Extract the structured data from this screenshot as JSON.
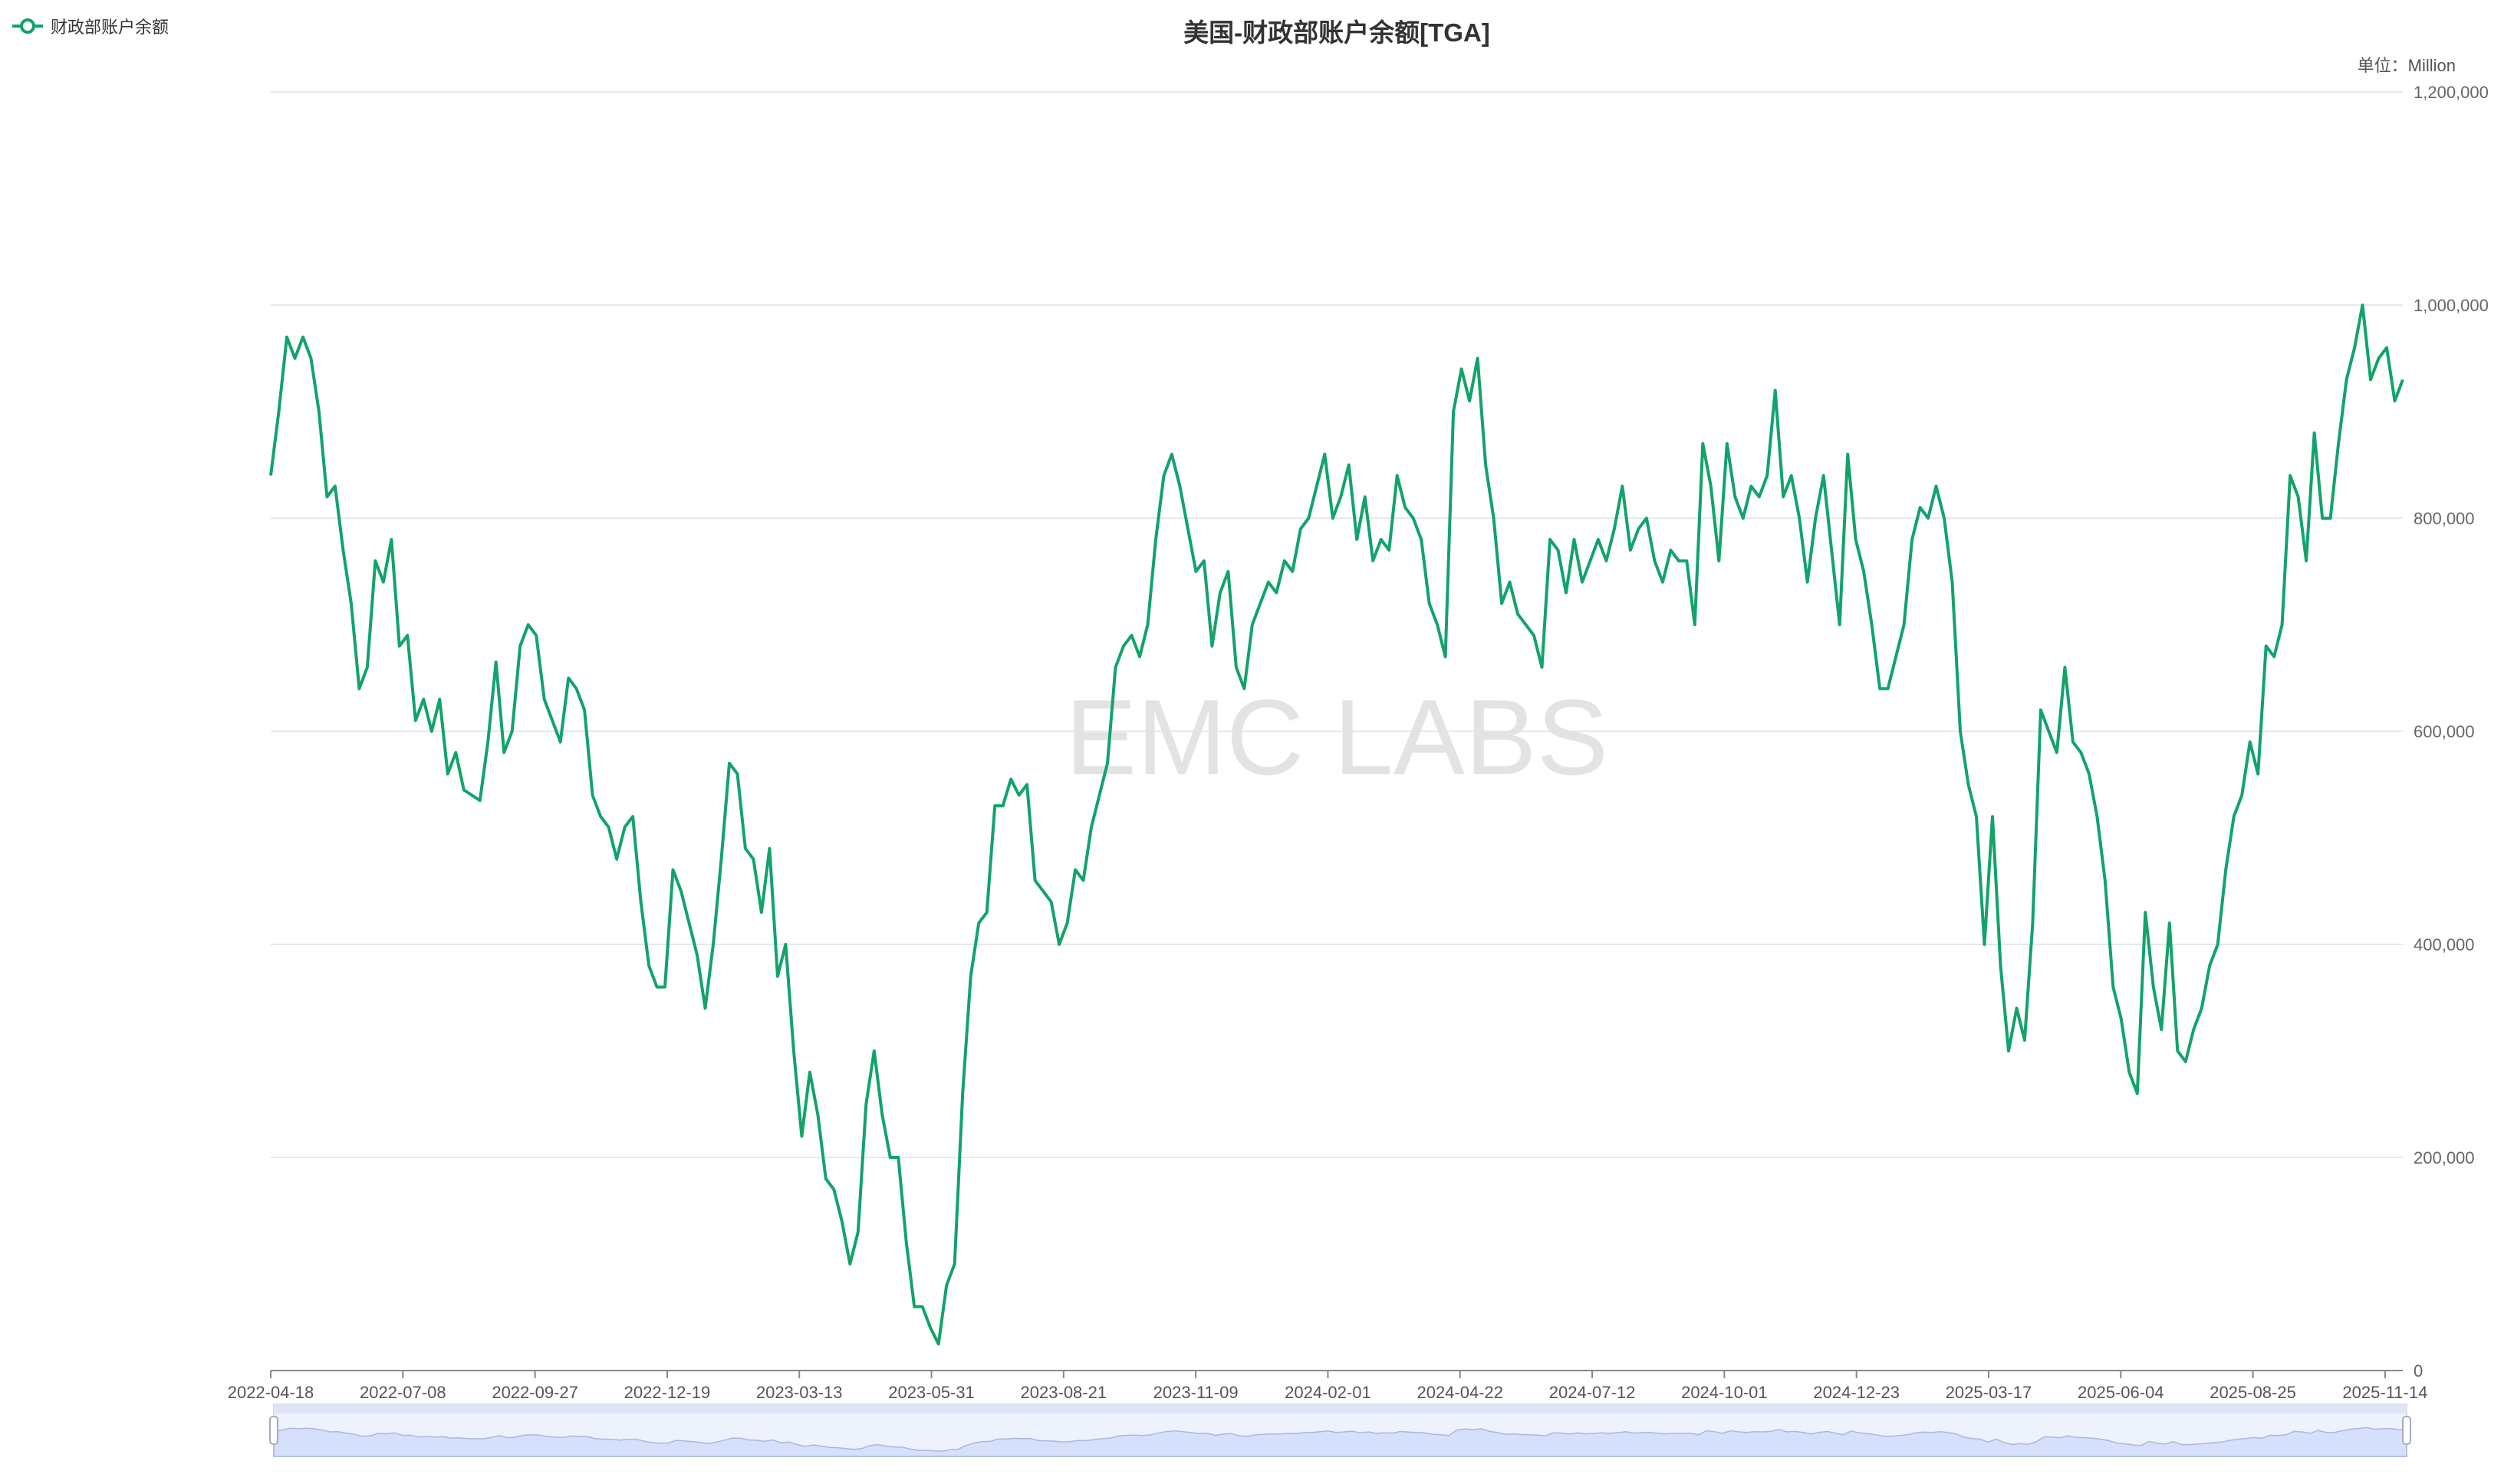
{
  "chart_data": {
    "type": "line",
    "title": "美国-财政部账户余额[TGA]",
    "unit_label": "单位：Million",
    "watermark": "EMC LABS",
    "series": [
      {
        "name": "财政部账户余额",
        "color": "#12a36b",
        "values": [
          840,
          900,
          970,
          950,
          970,
          950,
          900,
          820,
          830,
          770,
          720,
          640,
          660,
          760,
          740,
          780,
          680,
          690,
          610,
          630,
          600,
          630,
          560,
          580,
          545,
          540,
          535,
          590,
          665,
          580,
          600,
          680,
          700,
          690,
          630,
          610,
          590,
          650,
          640,
          620,
          540,
          520,
          510,
          480,
          510,
          520,
          440,
          380,
          360,
          360,
          470,
          450,
          420,
          390,
          340,
          400,
          480,
          570,
          560,
          490,
          480,
          430,
          490,
          370,
          400,
          300,
          220,
          280,
          240,
          180,
          170,
          140,
          100,
          130,
          250,
          300,
          240,
          200,
          200,
          120,
          60,
          60,
          40,
          25,
          80,
          100,
          260,
          370,
          420,
          430,
          530,
          530,
          555,
          540,
          550,
          460,
          450,
          440,
          400,
          420,
          470,
          460,
          510,
          540,
          570,
          660,
          680,
          690,
          670,
          700,
          780,
          840,
          860,
          830,
          790,
          750,
          760,
          680,
          730,
          750,
          660,
          640,
          700,
          720,
          740,
          730,
          760,
          750,
          790,
          800,
          830,
          860,
          800,
          820,
          850,
          780,
          820,
          760,
          780,
          770,
          840,
          810,
          800,
          780,
          720,
          700,
          670,
          900,
          940,
          910,
          950,
          850,
          800,
          720,
          740,
          710,
          700,
          690,
          660,
          780,
          770,
          730,
          780,
          740,
          760,
          780,
          760,
          790,
          830,
          770,
          790,
          800,
          760,
          740,
          770,
          760,
          760,
          700,
          870,
          830,
          760,
          870,
          820,
          800,
          830,
          820,
          840,
          920,
          820,
          840,
          800,
          740,
          800,
          840,
          770,
          700,
          860,
          780,
          750,
          700,
          640,
          640,
          670,
          700,
          780,
          810,
          800,
          830,
          800,
          740,
          600,
          550,
          520,
          400,
          520,
          380,
          300,
          340,
          310,
          420,
          620,
          600,
          580,
          660,
          590,
          580,
          560,
          520,
          460,
          360,
          330,
          280,
          260,
          430,
          360,
          320,
          420,
          300,
          290,
          320,
          340,
          380,
          400,
          470,
          520,
          540,
          590,
          560,
          680,
          670,
          700,
          840,
          820,
          760,
          880,
          800,
          800,
          870,
          930,
          960,
          1000,
          930,
          950,
          960,
          910,
          930
        ]
      }
    ],
    "values_unit": "thousand Million",
    "x_range": [
      "2022-04-18",
      "2025-11-14"
    ],
    "x_tick_labels": [
      "2022-04-18",
      "2022-07-08",
      "2022-09-27",
      "2022-12-19",
      "2023-03-13",
      "2023-05-31",
      "2023-08-21",
      "2023-11-09",
      "2024-02-01",
      "2024-04-22",
      "2024-07-12",
      "2024-10-01",
      "2024-12-23",
      "2025-03-17",
      "2025-06-04",
      "2025-08-25",
      "2025-11-14"
    ],
    "y_ticks": [
      0,
      200000,
      400000,
      600000,
      800000,
      1000000,
      1200000
    ],
    "y_tick_labels": [
      "0",
      "200,000",
      "400,000",
      "600,000",
      "800,000",
      "1,000,000",
      "1,200,000"
    ],
    "ylim": [
      0,
      1200000
    ],
    "grid": true,
    "legend_position": "top-left",
    "data_zoom": {
      "start_percent": 0,
      "end_percent": 100,
      "fill": "#d6e0fb"
    }
  }
}
